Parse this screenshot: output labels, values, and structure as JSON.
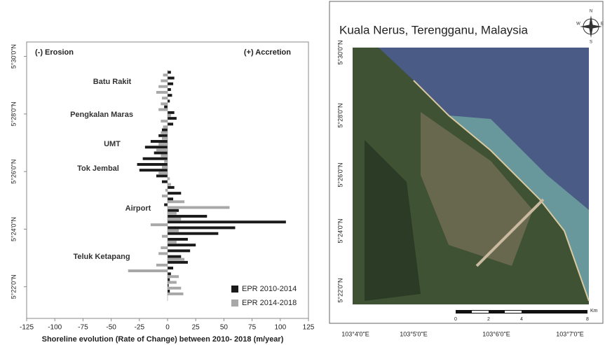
{
  "chart_data": {
    "type": "hbar",
    "title_left": "(-) Erosion",
    "title_right": "(+) Accretion",
    "x_label": "Shoreline evolution (Rate of Change) between 2010- 2018 (m/year)",
    "y": [
      21.8,
      22.0,
      22.2,
      22.4,
      22.6,
      22.8,
      23.0,
      23.2,
      23.4,
      23.6,
      23.8,
      24.0,
      24.2,
      24.4,
      24.6,
      24.8,
      25.0,
      25.2,
      25.4,
      25.6,
      25.8,
      26.0,
      26.2,
      26.4,
      26.6,
      26.8,
      27.0,
      27.2,
      27.4,
      27.6,
      27.8,
      28.0,
      28.2,
      28.4,
      28.6,
      28.8,
      29.0,
      29.2,
      29.4
    ],
    "series": [
      {
        "name": "EPR 2010-2014",
        "color": "#1a1a1a",
        "values": [
          2,
          1,
          2,
          3,
          5,
          18,
          12,
          20,
          25,
          18,
          45,
          60,
          105,
          35,
          10,
          -3,
          5,
          12,
          6,
          -5,
          -10,
          -25,
          -27,
          -22,
          -12,
          -20,
          -15,
          -8,
          -5,
          5,
          8,
          6,
          -3,
          2,
          4,
          3,
          5,
          6,
          3
        ]
      },
      {
        "name": "EPR 2014-2018",
        "color": "#a8a8a8",
        "values": [
          14,
          12,
          8,
          10,
          -35,
          -10,
          15,
          -8,
          -6,
          8,
          -5,
          10,
          -15,
          12,
          8,
          55,
          15,
          -5,
          -2,
          3,
          2,
          -8,
          -5,
          -3,
          -6,
          -10,
          -8,
          -5,
          -6,
          -4,
          -6,
          3,
          -8,
          -6,
          -5,
          -10,
          -8,
          -6,
          -4
        ]
      }
    ],
    "places": [
      "Batu Rakit",
      "Pengkalan Maras",
      "UMT",
      "Tok Jembal",
      "Airport",
      "Teluk Ketapang"
    ],
    "xlim": [
      -125,
      125
    ],
    "xticks": [
      -125,
      -100,
      -75,
      -50,
      -25,
      0,
      25,
      50,
      75,
      100,
      125
    ],
    "ylim": [
      20.9,
      30.5
    ],
    "yticks": [
      {
        "value": 22,
        "label": "5°22'0\"N"
      },
      {
        "value": 24,
        "label": "5°24'0\"N"
      },
      {
        "value": 26,
        "label": "5°26'0\"N"
      },
      {
        "value": 28,
        "label": "5°28'0\"N"
      },
      {
        "value": 30,
        "label": "5°30'0\"N"
      }
    ],
    "legend": "bottom-right"
  },
  "map": {
    "title": "Kuala Nerus, Terengganu, Malaysia",
    "lat_labels": [
      "5°30'0\"N",
      "5°28'0\"N",
      "5°26'0\"N",
      "5°24'0\"N",
      "5°22'0\"N"
    ],
    "lon_labels": [
      "103°4'0\"E",
      "103°5'0\"E",
      "103°6'0\"E",
      "103°7'0\"E"
    ],
    "scale_labels": [
      "0",
      "2",
      "4",
      "8"
    ],
    "scale_unit": "Km",
    "compass": [
      "N",
      "E",
      "S",
      "W"
    ]
  }
}
